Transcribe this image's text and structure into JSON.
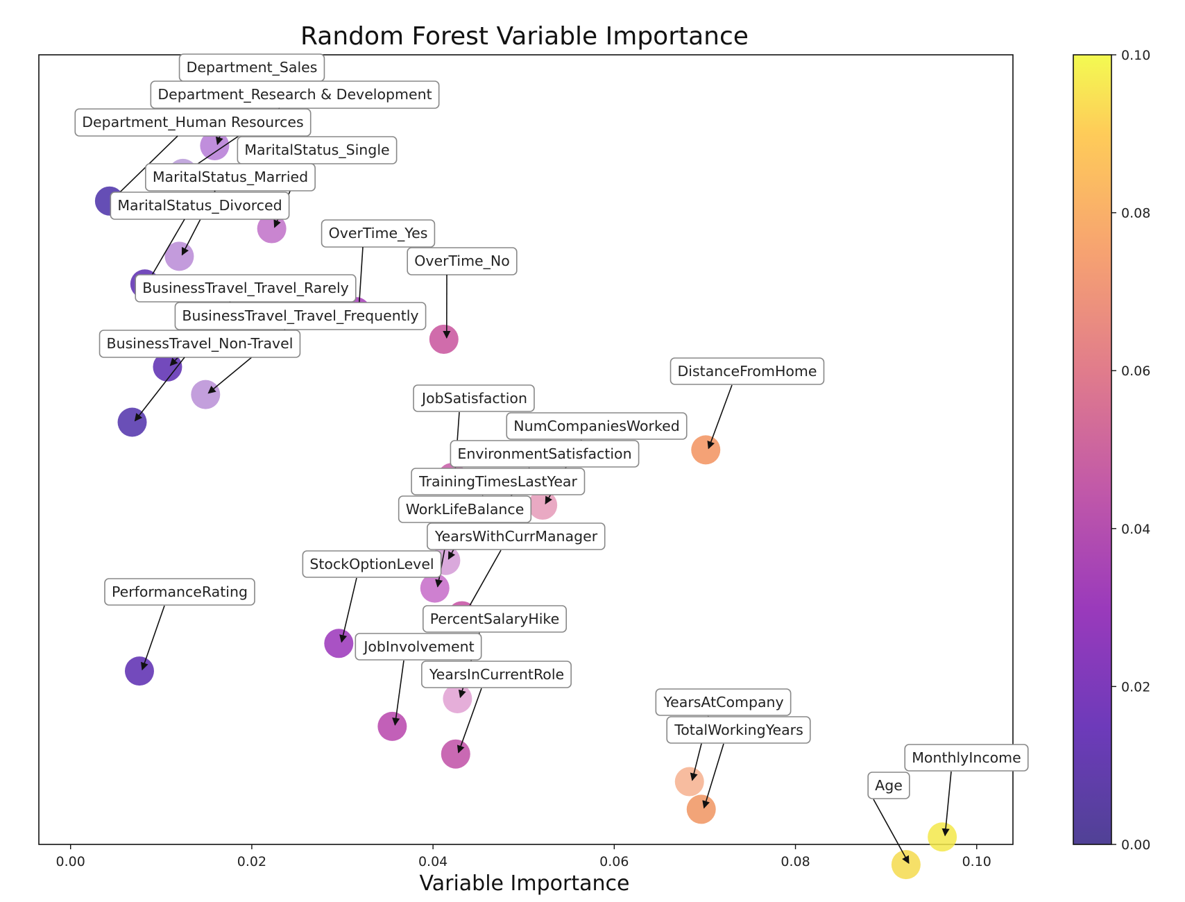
{
  "chart_data": {
    "type": "scatter",
    "title": "Random Forest Variable Importance",
    "xlabel": "Variable Importance",
    "ylabel": "",
    "xlim": [
      -0.0035,
      0.104
    ],
    "xticks": [
      "0.00",
      "0.02",
      "0.04",
      "0.06",
      "0.08",
      "0.10"
    ],
    "xtick_values": [
      0,
      0.02,
      0.04,
      0.06,
      0.08,
      0.1
    ],
    "y_axis": "category rank (no tick labels)",
    "colorbar": {
      "colormap": "plasma",
      "range": [
        0.0,
        0.1
      ],
      "ticks": [
        "0.00",
        "0.02",
        "0.04",
        "0.06",
        "0.08",
        "0.10"
      ],
      "tick_values": [
        0,
        0.02,
        0.04,
        0.06,
        0.08,
        0.1
      ]
    },
    "grid": false,
    "points": [
      {
        "label": "Department_Sales",
        "x": 0.0159,
        "color": "#b57ad6"
      },
      {
        "label": "Department_Research & Development",
        "x": 0.0124,
        "color": "#b99ad8"
      },
      {
        "label": "Department_Human Resources",
        "x": 0.0043,
        "color": "#4a2fa8"
      },
      {
        "label": "MaritalStatus_Single",
        "x": 0.0222,
        "color": "#c070c8"
      },
      {
        "label": "MaritalStatus_Married",
        "x": 0.012,
        "color": "#b98ad6"
      },
      {
        "label": "MaritalStatus_Divorced",
        "x": 0.0082,
        "color": "#5b2ab0"
      },
      {
        "label": "OverTime_Yes",
        "x": 0.0315,
        "color": "#a63bb9"
      },
      {
        "label": "OverTime_No",
        "x": 0.0412,
        "color": "#c8529c"
      },
      {
        "label": "BusinessTravel_Travel_Rarely",
        "x": 0.0107,
        "color": "#5a2ab0"
      },
      {
        "label": "BusinessTravel_Travel_Frequently",
        "x": 0.0149,
        "color": "#b88ed6"
      },
      {
        "label": "BusinessTravel_Non-Travel",
        "x": 0.0068,
        "color": "#5030aa"
      },
      {
        "label": "DistanceFromHome",
        "x": 0.0701,
        "color": "#f2925e"
      },
      {
        "label": "JobSatisfaction",
        "x": 0.0421,
        "color": "#c55ba6"
      },
      {
        "label": "NumCompaniesWorked",
        "x": 0.0521,
        "color": "#e59ab8"
      },
      {
        "label": "EnvironmentSatisfaction",
        "x": 0.0458,
        "color": "#de92c4"
      },
      {
        "label": "TrainingTimesLastYear",
        "x": 0.0414,
        "color": "#d49ad6"
      },
      {
        "label": "WorkLifeBalance",
        "x": 0.0402,
        "color": "#c66ac8"
      },
      {
        "label": "YearsWithCurrManager",
        "x": 0.0432,
        "color": "#c64da2"
      },
      {
        "label": "StockOptionLevel",
        "x": 0.0296,
        "color": "#9a34ba"
      },
      {
        "label": "PerformanceRating",
        "x": 0.0076,
        "color": "#5b2ab0"
      },
      {
        "label": "PercentSalaryHike",
        "x": 0.0427,
        "color": "#e0a0d2"
      },
      {
        "label": "JobInvolvement",
        "x": 0.0355,
        "color": "#b744ac"
      },
      {
        "label": "YearsInCurrentRole",
        "x": 0.0425,
        "color": "#c04fa6"
      },
      {
        "label": "YearsAtCompany",
        "x": 0.0683,
        "color": "#f6b08e"
      },
      {
        "label": "TotalWorkingYears",
        "x": 0.0696,
        "color": "#f09460"
      },
      {
        "label": "MonthlyIncome",
        "x": 0.0962,
        "color": "#f3e84a"
      },
      {
        "label": "Age",
        "x": 0.0922,
        "color": "#f5da4e"
      }
    ]
  }
}
